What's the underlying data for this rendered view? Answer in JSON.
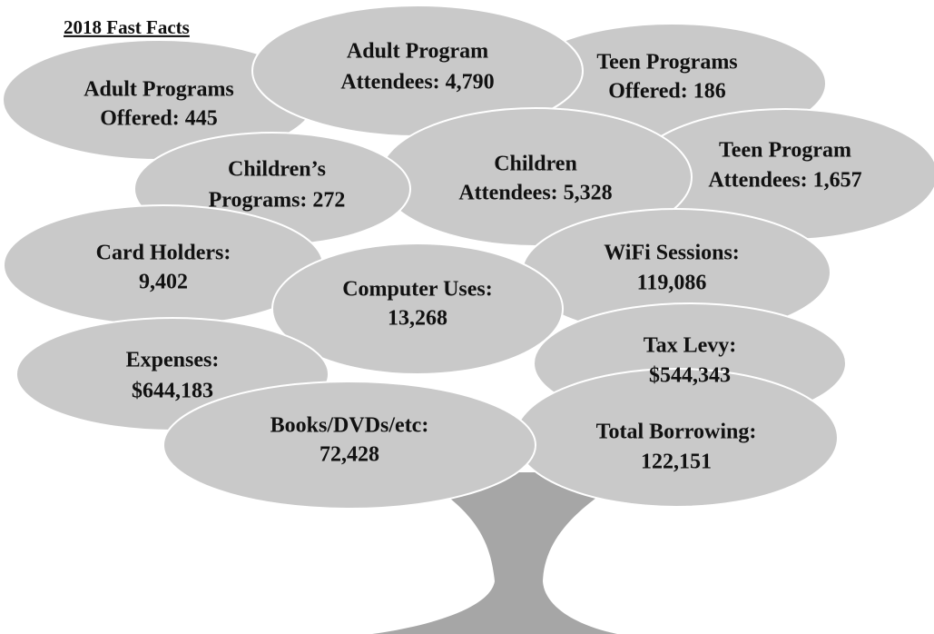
{
  "title": "2018 Fast Facts",
  "facts": [
    {
      "lines": [
        "Adult Programs",
        "Offered: 445"
      ]
    },
    {
      "lines": [
        "Adult Program",
        "Attendees: 4,790"
      ]
    },
    {
      "lines": [
        "Teen Programs",
        "Offered: 186"
      ]
    },
    {
      "lines": [
        "Children’s",
        "Programs: 272"
      ]
    },
    {
      "lines": [
        "Children",
        "Attendees: 5,328"
      ]
    },
    {
      "lines": [
        "Teen Program",
        "Attendees: 1,657"
      ]
    },
    {
      "lines": [
        "Card Holders:",
        "9,402"
      ]
    },
    {
      "lines": [
        "WiFi Sessions:",
        "119,086"
      ]
    },
    {
      "lines": [
        "Computer Uses:",
        "13,268"
      ]
    },
    {
      "lines": [
        "Expenses:",
        "$644,183"
      ]
    },
    {
      "lines": [
        "Tax Levy:",
        "$544,343"
      ]
    },
    {
      "lines": [
        "Books/DVDs/etc:",
        "72,428"
      ]
    },
    {
      "lines": [
        "Total Borrowing:",
        "122,151"
      ]
    }
  ]
}
